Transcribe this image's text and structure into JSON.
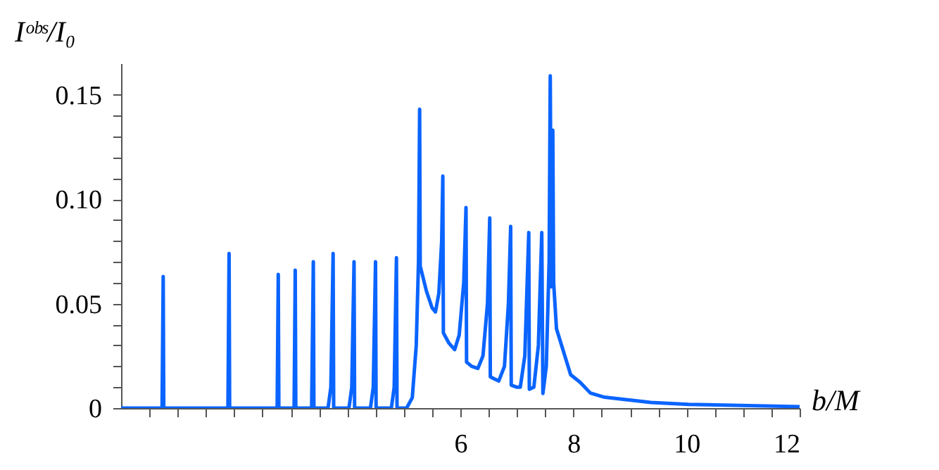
{
  "chart_data": {
    "type": "line",
    "xlabel": "b/M",
    "ylabel": "Iᵒᵇˢ/I₀",
    "series": [
      {
        "color": "#0a64ff",
        "x": [
          0,
          0.725,
          0.745,
          0.755,
          1.89,
          1.91,
          1.92,
          2.76,
          2.78,
          2.79,
          3.06,
          3.08,
          3.09,
          3.37,
          3.4,
          3.41,
          3.66,
          3.71,
          3.75,
          3.76,
          4.03,
          4.08,
          4.12,
          4.13,
          4.41,
          4.46,
          4.5,
          4.51,
          4.78,
          4.83,
          4.87,
          4.88,
          5.05,
          5.15,
          5.22,
          5.26,
          5.28,
          5.29,
          5.4,
          5.5,
          5.56,
          5.62,
          5.67,
          5.69,
          5.7,
          5.8,
          5.9,
          5.98,
          6.06,
          6.1,
          6.11,
          6.2,
          6.31,
          6.4,
          6.48,
          6.52,
          6.53,
          6.6,
          6.68,
          6.78,
          6.85,
          6.89,
          6.9,
          7.0,
          7.06,
          7.14,
          7.21,
          7.22,
          7.3,
          7.38,
          7.44,
          7.46,
          7.52,
          7.57,
          7.59,
          7.61,
          7.635,
          7.65,
          7.7,
          7.95,
          8.12,
          8.3,
          8.55,
          9.37,
          10.04,
          12
        ],
        "values": [
          0,
          0,
          0.063,
          0,
          0,
          0.074,
          0,
          0,
          0.064,
          0,
          0,
          0.066,
          0,
          0,
          0.07,
          0,
          0,
          0.01,
          0.074,
          0,
          0,
          0.01,
          0.07,
          0,
          0,
          0.01,
          0.07,
          0,
          0,
          0.01,
          0.072,
          0,
          0,
          0.005,
          0.03,
          0.07,
          0.143,
          0.068,
          0.056,
          0.048,
          0.046,
          0.055,
          0.08,
          0.111,
          0.036,
          0.031,
          0.028,
          0.035,
          0.06,
          0.096,
          0.022,
          0.02,
          0.019,
          0.025,
          0.05,
          0.091,
          0.015,
          0.014,
          0.013,
          0.02,
          0.05,
          0.087,
          0.011,
          0.01,
          0.01,
          0.025,
          0.084,
          0.009,
          0.01,
          0.03,
          0.084,
          0.007,
          0.02,
          0.07,
          0.159,
          0.058,
          0.133,
          0.06,
          0.038,
          0.016,
          0.0123,
          0.0072,
          0.0052,
          0.0027,
          0.0018,
          0.0007
        ]
      }
    ],
    "xlim": [
      0,
      12
    ],
    "xticks": [
      {
        "value": 0.5,
        "label": null
      },
      {
        "value": 1,
        "label": null
      },
      {
        "value": 1.5,
        "label": null
      },
      {
        "value": 2,
        "label": null
      },
      {
        "value": 2.5,
        "label": null
      },
      {
        "value": 3,
        "label": null
      },
      {
        "value": 3.5,
        "label": null
      },
      {
        "value": 4,
        "label": null
      },
      {
        "value": 4.5,
        "label": null
      },
      {
        "value": 5,
        "label": null
      },
      {
        "value": 5.5,
        "label": null
      },
      6,
      {
        "value": 6.5,
        "label": null
      },
      {
        "value": 7,
        "label": null
      },
      {
        "value": 7.5,
        "label": null
      },
      8,
      {
        "value": 8.5,
        "label": null
      },
      {
        "value": 9,
        "label": null
      },
      {
        "value": 9.5,
        "label": null
      },
      10,
      {
        "value": 10.5,
        "label": null
      },
      {
        "value": 11,
        "label": null
      },
      {
        "value": 11.5,
        "label": null
      },
      12
    ],
    "ylim": [
      0,
      0.165
    ],
    "yticks": [
      0,
      {
        "value": 0.01,
        "label": null
      },
      {
        "value": 0.02,
        "label": null
      },
      {
        "value": 0.03,
        "label": null
      },
      {
        "value": 0.04,
        "label": null
      },
      0.05,
      {
        "value": 0.06,
        "label": null
      },
      {
        "value": 0.07,
        "label": null
      },
      {
        "value": 0.08,
        "label": null
      },
      {
        "value": 0.09,
        "label": null
      },
      {
        "value": 0.1,
        "label": "0.10"
      },
      {
        "value": 0.11,
        "label": null
      },
      {
        "value": 0.12,
        "label": null
      },
      {
        "value": 0.13,
        "label": null
      },
      {
        "value": 0.14,
        "label": null
      },
      0.15
    ],
    "grid": false,
    "marker": "none",
    "line_style": "solid"
  }
}
